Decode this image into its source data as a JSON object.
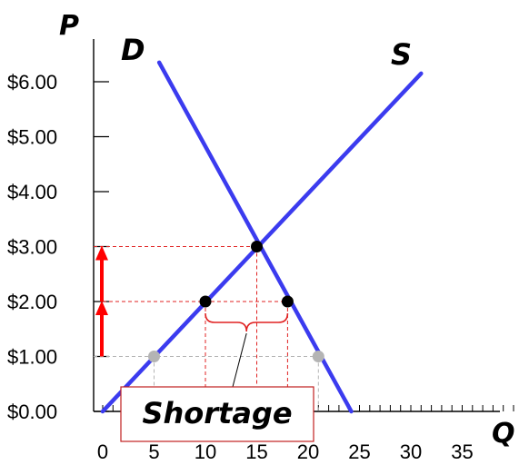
{
  "chart_data": {
    "type": "line",
    "title": "",
    "xlabel": "Q",
    "ylabel": "P",
    "xlim": [
      0,
      44
    ],
    "ylim": [
      0,
      6.5
    ],
    "x_ticks": [
      0,
      5,
      10,
      15,
      20,
      25,
      30,
      35
    ],
    "x_tick_labels": [
      "0",
      "5",
      "10",
      "15",
      "20",
      "25",
      "30",
      "35"
    ],
    "y_ticks": [
      0,
      1,
      2,
      3,
      4,
      5,
      6
    ],
    "y_tick_labels": [
      "$0.00",
      "$1.00",
      "$2.00",
      "$3.00",
      "$4.00",
      "$5.00",
      "$6.00"
    ],
    "series": [
      {
        "name": "D",
        "color": "#3b3bef",
        "points": [
          [
            5.5,
            6.35
          ],
          [
            24.2,
            0
          ]
        ]
      },
      {
        "name": "S",
        "color": "#3b3bef",
        "points": [
          [
            0,
            0
          ],
          [
            31,
            6.15
          ]
        ]
      }
    ],
    "points": [
      {
        "x": 15,
        "y": 3,
        "color": "#000000"
      },
      {
        "x": 10,
        "y": 2,
        "color": "#000000"
      },
      {
        "x": 18,
        "y": 2,
        "color": "#000000"
      },
      {
        "x": 5,
        "y": 1,
        "color": "#b4b4b4"
      },
      {
        "x": 21,
        "y": 1,
        "color": "#b4b4b4"
      }
    ],
    "reference_lines": [
      {
        "y": 3,
        "x_to": 15,
        "color": "#e02020"
      },
      {
        "y": 2,
        "x_from": 0,
        "x_to": 18,
        "color": "#e02020"
      },
      {
        "x": 10,
        "y_to": 2,
        "color": "#e02020"
      },
      {
        "x": 15,
        "y_to": 3,
        "color": "#e02020"
      },
      {
        "x": 18,
        "y_to": 2,
        "color": "#e02020"
      },
      {
        "y": 1,
        "x_to": 21,
        "color": "#b4b4b4"
      },
      {
        "x": 5,
        "y_to": 1,
        "color": "#b4b4b4"
      },
      {
        "x": 21,
        "y_to": 1,
        "color": "#b4b4b4"
      }
    ],
    "arrows": [
      {
        "x": 0,
        "y_from": 1,
        "y_to": 2,
        "color": "#ff0000"
      },
      {
        "x": 0,
        "y_from": 2,
        "y_to": 3,
        "color": "#ff0000"
      }
    ],
    "annotation": {
      "text": "Shortage",
      "brace_x": [
        10,
        18
      ],
      "brace_y": 2,
      "border_color": "#c02020"
    },
    "grid": false,
    "legend": "none"
  }
}
